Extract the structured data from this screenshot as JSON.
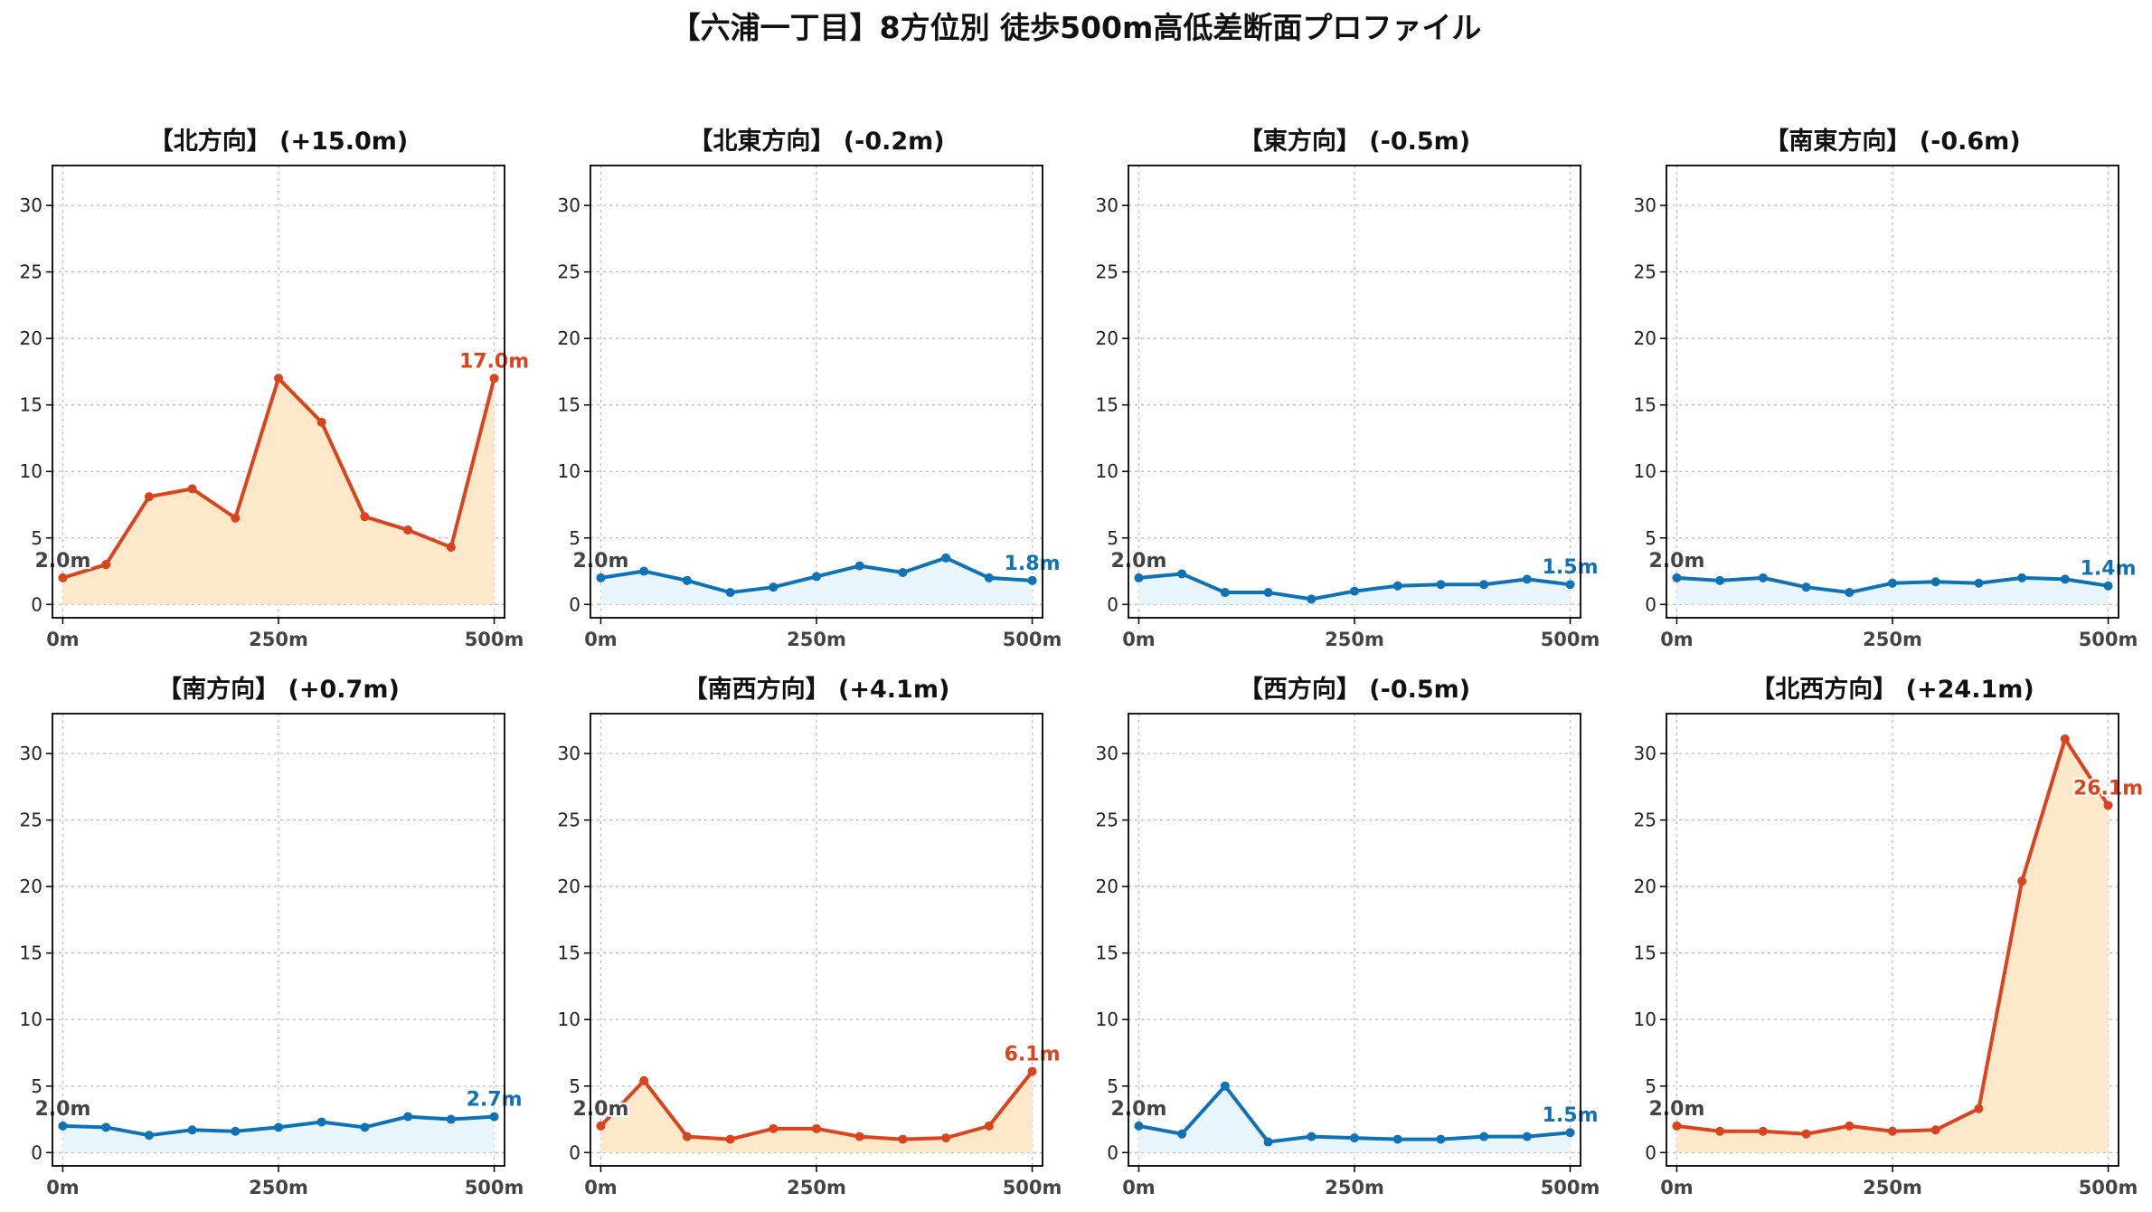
{
  "suptitle": "【六浦一丁目】8方位別 徒歩500m高低差断面プロファイル",
  "colors": {
    "up_line": "#d9431e",
    "up_fill": "#fde9c9",
    "down_line": "#0f72b6",
    "down_fill": "#e8f6fb"
  },
  "chart_data": [
    {
      "type": "area",
      "title": "【北方向】 (+15.0m)",
      "trend": "up",
      "x": [
        0,
        50,
        100,
        150,
        200,
        250,
        300,
        350,
        400,
        450,
        500
      ],
      "y": [
        2.0,
        3.0,
        8.1,
        8.7,
        6.5,
        17.0,
        13.7,
        6.6,
        5.6,
        4.3,
        17.0
      ],
      "start_label": "2.0m",
      "end_label": "17.0m",
      "xticks": [
        "0m",
        "250m",
        "500m"
      ],
      "yticks": [
        "0",
        "5",
        "10",
        "15",
        "20",
        "25",
        "30"
      ],
      "xlim": [
        -12,
        512
      ],
      "ylim": [
        -1,
        33
      ],
      "grid": true
    },
    {
      "type": "area",
      "title": "【北東方向】 (-0.2m)",
      "trend": "down",
      "x": [
        0,
        50,
        100,
        150,
        200,
        250,
        300,
        350,
        400,
        450,
        500
      ],
      "y": [
        2.0,
        2.5,
        1.8,
        0.9,
        1.3,
        2.1,
        2.9,
        2.4,
        3.5,
        2.0,
        1.8
      ],
      "start_label": "2.0m",
      "end_label": "1.8m",
      "xticks": [
        "0m",
        "250m",
        "500m"
      ],
      "yticks": [
        "0",
        "5",
        "10",
        "15",
        "20",
        "25",
        "30"
      ],
      "xlim": [
        -12,
        512
      ],
      "ylim": [
        -1,
        33
      ],
      "grid": true
    },
    {
      "type": "area",
      "title": "【東方向】 (-0.5m)",
      "trend": "down",
      "x": [
        0,
        50,
        100,
        150,
        200,
        250,
        300,
        350,
        400,
        450,
        500
      ],
      "y": [
        2.0,
        2.3,
        0.9,
        0.9,
        0.4,
        1.0,
        1.4,
        1.5,
        1.5,
        1.9,
        1.5
      ],
      "start_label": "2.0m",
      "end_label": "1.5m",
      "xticks": [
        "0m",
        "250m",
        "500m"
      ],
      "yticks": [
        "0",
        "5",
        "10",
        "15",
        "20",
        "25",
        "30"
      ],
      "xlim": [
        -12,
        512
      ],
      "ylim": [
        -1,
        33
      ],
      "grid": true
    },
    {
      "type": "area",
      "title": "【南東方向】 (-0.6m)",
      "trend": "down",
      "x": [
        0,
        50,
        100,
        150,
        200,
        250,
        300,
        350,
        400,
        450,
        500
      ],
      "y": [
        2.0,
        1.8,
        2.0,
        1.3,
        0.9,
        1.6,
        1.7,
        1.6,
        2.0,
        1.9,
        1.4
      ],
      "start_label": "2.0m",
      "end_label": "1.4m",
      "xticks": [
        "0m",
        "250m",
        "500m"
      ],
      "yticks": [
        "0",
        "5",
        "10",
        "15",
        "20",
        "25",
        "30"
      ],
      "xlim": [
        -12,
        512
      ],
      "ylim": [
        -1,
        33
      ],
      "grid": true
    },
    {
      "type": "area",
      "title": "【南方向】 (+0.7m)",
      "trend": "down",
      "x": [
        0,
        50,
        100,
        150,
        200,
        250,
        300,
        350,
        400,
        450,
        500
      ],
      "y": [
        2.0,
        1.9,
        1.3,
        1.7,
        1.6,
        1.9,
        2.3,
        1.9,
        2.7,
        2.5,
        2.7
      ],
      "start_label": "2.0m",
      "end_label": "2.7m",
      "xticks": [
        "0m",
        "250m",
        "500m"
      ],
      "yticks": [
        "0",
        "5",
        "10",
        "15",
        "20",
        "25",
        "30"
      ],
      "xlim": [
        -12,
        512
      ],
      "ylim": [
        -1,
        33
      ],
      "grid": true
    },
    {
      "type": "area",
      "title": "【南西方向】 (+4.1m)",
      "trend": "up",
      "x": [
        0,
        50,
        100,
        150,
        200,
        250,
        300,
        350,
        400,
        450,
        500
      ],
      "y": [
        2.0,
        5.4,
        1.2,
        1.0,
        1.8,
        1.8,
        1.2,
        1.0,
        1.1,
        2.0,
        6.1
      ],
      "start_label": "2.0m",
      "end_label": "6.1m",
      "xticks": [
        "0m",
        "250m",
        "500m"
      ],
      "yticks": [
        "0",
        "5",
        "10",
        "15",
        "20",
        "25",
        "30"
      ],
      "xlim": [
        -12,
        512
      ],
      "ylim": [
        -1,
        33
      ],
      "grid": true
    },
    {
      "type": "area",
      "title": "【西方向】 (-0.5m)",
      "trend": "down",
      "x": [
        0,
        50,
        100,
        150,
        200,
        250,
        300,
        350,
        400,
        450,
        500
      ],
      "y": [
        2.0,
        1.4,
        5.0,
        0.8,
        1.2,
        1.1,
        1.0,
        1.0,
        1.2,
        1.2,
        1.5
      ],
      "start_label": "2.0m",
      "end_label": "1.5m",
      "xticks": [
        "0m",
        "250m",
        "500m"
      ],
      "yticks": [
        "0",
        "5",
        "10",
        "15",
        "20",
        "25",
        "30"
      ],
      "xlim": [
        -12,
        512
      ],
      "ylim": [
        -1,
        33
      ],
      "grid": true
    },
    {
      "type": "area",
      "title": "【北西方向】 (+24.1m)",
      "trend": "up",
      "x": [
        0,
        50,
        100,
        150,
        200,
        250,
        300,
        350,
        400,
        450,
        500
      ],
      "y": [
        2.0,
        1.6,
        1.6,
        1.4,
        2.0,
        1.6,
        1.7,
        3.3,
        20.4,
        31.1,
        26.1
      ],
      "start_label": "2.0m",
      "end_label": "26.1m",
      "xticks": [
        "0m",
        "250m",
        "500m"
      ],
      "yticks": [
        "0",
        "5",
        "10",
        "15",
        "20",
        "25",
        "30"
      ],
      "xlim": [
        -12,
        512
      ],
      "ylim": [
        -1,
        33
      ],
      "grid": true
    }
  ]
}
